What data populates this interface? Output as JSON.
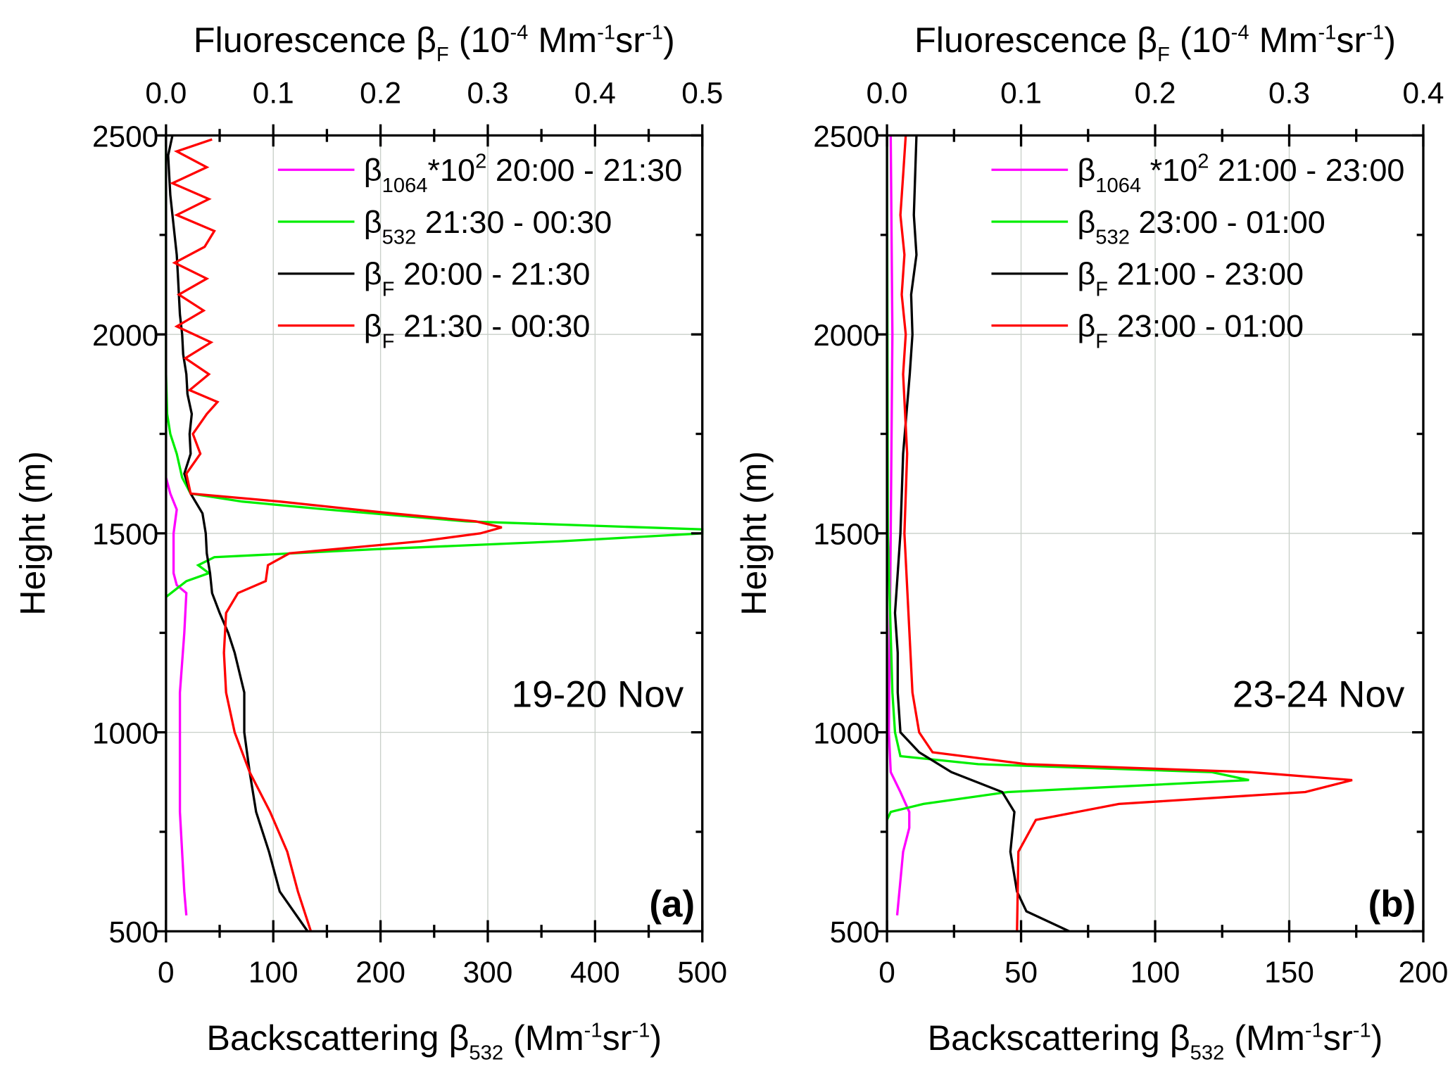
{
  "chart_data": [
    {
      "type": "line",
      "panel_label": "(a)",
      "annotation": "19-20 Nov",
      "xlabel": {
        "main": "Backscattering β",
        "sub": "532",
        "unit_pre": " (Mm",
        "sup1": "-1",
        "mid": "sr",
        "sup2": "-1",
        "end": ")"
      },
      "x2label": {
        "main": "Fluorescence β",
        "sub": "F",
        "unit_pre": " (10",
        "sup0": "-4",
        "unit_mid": " Mm",
        "sup1": "-1",
        "mid": "sr",
        "sup2": "-1",
        "end": ")"
      },
      "ylabel": "Height (m)",
      "xlim": [
        0,
        500
      ],
      "x2lim": [
        0,
        0.5
      ],
      "ylim": [
        500,
        2500
      ],
      "xticks": [
        "0",
        "100",
        "200",
        "300",
        "400",
        "500"
      ],
      "x2ticks": [
        "0.0",
        "0.1",
        "0.2",
        "0.3",
        "0.4",
        "0.5"
      ],
      "yticks": [
        "500",
        "1000",
        "1500",
        "2000",
        "2500"
      ],
      "grid": true,
      "legend_position": "top-right",
      "series": [
        {
          "name": "β1064*10² 20:00 - 21:30",
          "legend": {
            "sym": "β",
            "sub": "1064",
            "rest": "*10",
            "sup": "2",
            "time": " 20:00 - 21:30"
          },
          "color": "#ff00ff",
          "axis": "bottom",
          "y": [
            540,
            600,
            800,
            1100,
            1250,
            1350,
            1370,
            1400,
            1500,
            1560,
            1600,
            1640
          ],
          "x": [
            19,
            17,
            13,
            13,
            17,
            19,
            10,
            7,
            7,
            10,
            4,
            0
          ]
        },
        {
          "name": "β532 21:30 - 00:30",
          "legend": {
            "sym": "β",
            "sub": "532",
            "rest": "",
            "sup": "",
            "time": " 21:30 - 00:30"
          },
          "color": "#00ee00",
          "axis": "bottom",
          "y": [
            1340,
            1380,
            1400,
            1420,
            1440,
            1460,
            1480,
            1500,
            1510,
            1530,
            1560,
            1580,
            1600,
            1640,
            1700,
            1750,
            1800,
            1900,
            2500
          ],
          "x": [
            0,
            19,
            40,
            30,
            45,
            193,
            367,
            500,
            500,
            280,
            150,
            71,
            23,
            15,
            10,
            4,
            1,
            0,
            0
          ]
        },
        {
          "name": "βF 20:00 - 21:30",
          "legend": {
            "sym": "β",
            "sub": "F",
            "rest": "",
            "sup": "",
            "time": "  20:00 - 21:30"
          },
          "color": "#000000",
          "axis": "top",
          "y": [
            500,
            600,
            700,
            800,
            900,
            1000,
            1100,
            1200,
            1250,
            1300,
            1350,
            1400,
            1450,
            1500,
            1550,
            1600,
            1650,
            1700,
            1750,
            1800,
            1850,
            1900,
            1950,
            2000,
            2050,
            2100,
            2150,
            2200,
            2250,
            2300,
            2350,
            2400,
            2450,
            2500
          ],
          "x": [
            0.132,
            0.106,
            0.096,
            0.084,
            0.078,
            0.073,
            0.073,
            0.064,
            0.058,
            0.05,
            0.043,
            0.041,
            0.038,
            0.037,
            0.034,
            0.023,
            0.017,
            0.023,
            0.022,
            0.024,
            0.02,
            0.019,
            0.016,
            0.015,
            0.013,
            0.012,
            0.011,
            0.01,
            0.008,
            0.006,
            0.004,
            0.003,
            0.002,
            0.006
          ]
        },
        {
          "name": "βF 21:30 - 00:30",
          "legend": {
            "sym": "β",
            "sub": "F",
            "rest": "",
            "sup": "",
            "time": "  21:30 - 00:30"
          },
          "color": "#ff0000",
          "axis": "top",
          "y": [
            500,
            600,
            700,
            800,
            900,
            1000,
            1100,
            1200,
            1300,
            1350,
            1380,
            1420,
            1450,
            1480,
            1500,
            1515,
            1530,
            1550,
            1580,
            1600,
            1650,
            1700,
            1750,
            1800,
            1830,
            1860,
            1900,
            1940,
            1980,
            2020,
            2060,
            2100,
            2140,
            2180,
            2220,
            2260,
            2300,
            2340,
            2380,
            2420,
            2460,
            2490
          ],
          "x": [
            0.135,
            0.123,
            0.113,
            0.097,
            0.078,
            0.064,
            0.056,
            0.054,
            0.056,
            0.067,
            0.093,
            0.095,
            0.115,
            0.237,
            0.293,
            0.313,
            0.289,
            0.211,
            0.106,
            0.023,
            0.019,
            0.032,
            0.025,
            0.038,
            0.048,
            0.022,
            0.04,
            0.018,
            0.042,
            0.01,
            0.035,
            0.012,
            0.038,
            0.008,
            0.036,
            0.045,
            0.01,
            0.04,
            0.006,
            0.038,
            0.01,
            0.043
          ]
        }
      ]
    },
    {
      "type": "line",
      "panel_label": "(b)",
      "annotation": "23-24 Nov",
      "xlabel": {
        "main": "Backscattering β",
        "sub": "532",
        "unit_pre": " (Mm",
        "sup1": "-1",
        "mid": "sr",
        "sup2": "-1",
        "end": ")"
      },
      "x2label": {
        "main": "Fluorescence β",
        "sub": "F",
        "unit_pre": " (10",
        "sup0": "-4",
        "unit_mid": " Mm",
        "sup1": "-1",
        "mid": "sr",
        "sup2": "-1",
        "end": ")"
      },
      "ylabel": "Height (m)",
      "xlim": [
        0,
        200
      ],
      "x2lim": [
        0,
        0.4
      ],
      "ylim": [
        500,
        2500
      ],
      "xticks": [
        "0",
        "50",
        "100",
        "150",
        "200"
      ],
      "x2ticks": [
        "0.0",
        "0.1",
        "0.2",
        "0.3",
        "0.4"
      ],
      "yticks": [
        "500",
        "1000",
        "1500",
        "2000",
        "2500"
      ],
      "grid": true,
      "legend_position": "top-right",
      "series": [
        {
          "name": "β1064*10² 21:00 - 23:00",
          "legend": {
            "sym": "β",
            "sub": "1064",
            "rest": " *10",
            "sup": "2",
            "time": " 21:00 - 23:00"
          },
          "color": "#ff00ff",
          "axis": "bottom",
          "y": [
            540,
            700,
            760,
            800,
            850,
            900,
            1000,
            1500,
            2000,
            2500
          ],
          "x": [
            3.8,
            6,
            8.3,
            8.3,
            5,
            1.4,
            0.7,
            1.4,
            2,
            1.4
          ]
        },
        {
          "name": "β532 23:00 - 01:00",
          "legend": {
            "sym": "β",
            "sub": "532",
            "rest": "",
            "sup": "",
            "time": "  23:00 - 01:00"
          },
          "color": "#00ee00",
          "axis": "bottom",
          "y": [
            780,
            800,
            820,
            850,
            880,
            900,
            920,
            940,
            1000,
            1100,
            1500,
            2500
          ],
          "x": [
            0,
            1.4,
            13.6,
            45,
            135,
            121,
            34,
            5,
            3,
            2,
            0.3,
            0
          ]
        },
        {
          "name": "βF 21:00 - 23:00",
          "legend": {
            "sym": "β",
            "sub": "F",
            "rest": "",
            "sup": "",
            "time": "   21:00 - 23:00"
          },
          "color": "#000000",
          "axis": "top",
          "y": [
            500,
            550,
            600,
            700,
            800,
            850,
            900,
            950,
            1000,
            1100,
            1200,
            1300,
            1500,
            1700,
            1900,
            2000,
            2100,
            2200,
            2300,
            2400,
            2500
          ],
          "x": [
            0.136,
            0.104,
            0.097,
            0.092,
            0.095,
            0.086,
            0.048,
            0.024,
            0.01,
            0.008,
            0.008,
            0.006,
            0.01,
            0.012,
            0.017,
            0.019,
            0.018,
            0.022,
            0.02,
            0.021,
            0.022
          ]
        },
        {
          "name": "βF 23:00 - 01:00",
          "legend": {
            "sym": "β",
            "sub": "F",
            "rest": "",
            "sup": "",
            "time": "   23:00 - 01:00"
          },
          "color": "#ff0000",
          "axis": "top",
          "y": [
            500,
            700,
            780,
            820,
            850,
            880,
            900,
            920,
            950,
            1000,
            1100,
            1300,
            1500,
            1700,
            1900,
            2000,
            2100,
            2200,
            2300,
            2400,
            2500
          ],
          "x": [
            0.097,
            0.098,
            0.111,
            0.173,
            0.312,
            0.347,
            0.271,
            0.104,
            0.034,
            0.024,
            0.019,
            0.016,
            0.013,
            0.015,
            0.012,
            0.014,
            0.011,
            0.013,
            0.01,
            0.012,
            0.014
          ]
        }
      ]
    }
  ]
}
